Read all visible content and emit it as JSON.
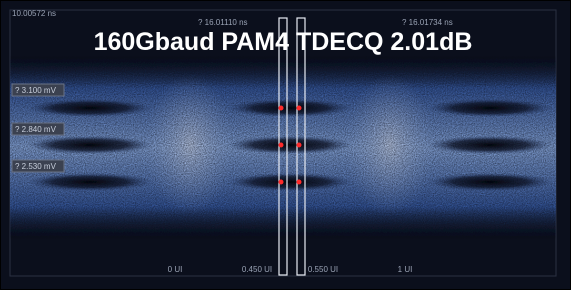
{
  "title": "160Gbaud PAM4 TDECQ 2.01dB",
  "top_labels": [
    "10.00572 ns",
    "? 16.01110 ns",
    "? 16.01734 ns"
  ],
  "level_labels": [
    "? 3.100 mV",
    "? 2.840 mV",
    "? 2.530 mV"
  ],
  "bottom_labels": [
    "0 UI",
    "0.450 UI",
    "0.550 UI",
    "1 UI"
  ]
}
